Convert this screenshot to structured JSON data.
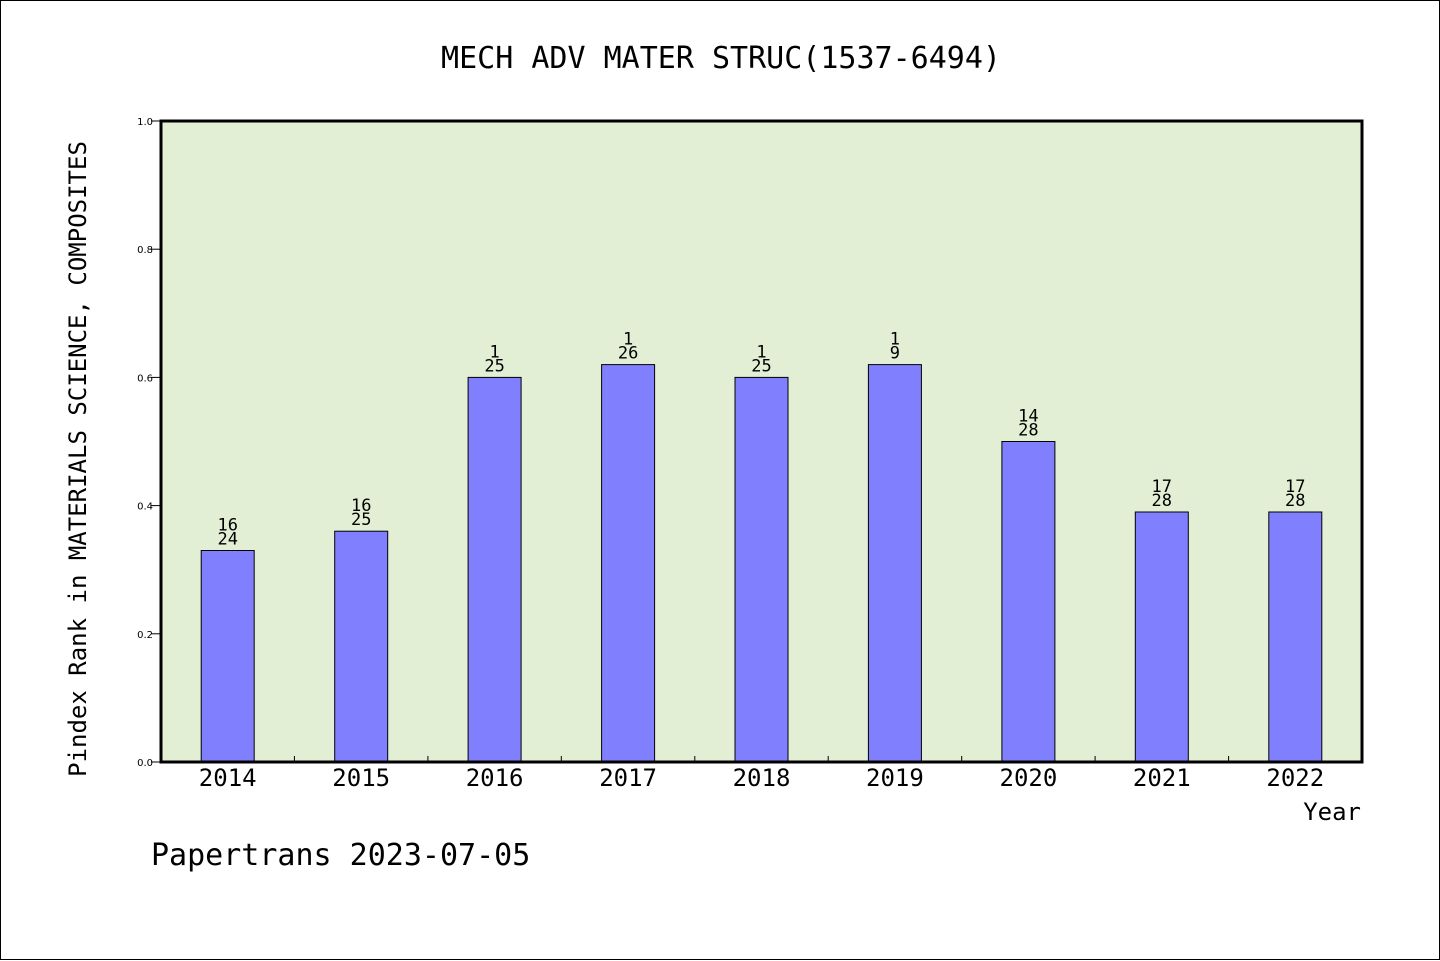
{
  "chart_data": {
    "type": "bar",
    "title": "MECH ADV MATER STRUC(1537-6494)",
    "xlabel": "Year",
    "ylabel": "Pindex Rank in MATERIALS SCIENCE, COMPOSITES",
    "ylim": [
      0,
      1.0
    ],
    "yticks": [
      "0.0",
      "0.2",
      "0.4",
      "0.6",
      "0.8",
      "1.0"
    ],
    "categories": [
      "2014",
      "2015",
      "2016",
      "2017",
      "2018",
      "2019",
      "2020",
      "2021",
      "2022"
    ],
    "values": [
      0.33,
      0.36,
      0.6,
      0.62,
      0.6,
      0.62,
      0.5,
      0.39,
      0.39
    ],
    "labels_top": [
      "16",
      "16",
      "1",
      "1",
      "1",
      "1",
      "14",
      "17",
      "17"
    ],
    "labels_bottom": [
      "24",
      "25",
      "25",
      "26",
      "25",
      "9",
      "28",
      "28",
      "28"
    ],
    "plot_background": "#e2efd5",
    "bar_color": "#8080ff",
    "grid": false
  },
  "footer": "Papertrans 2023-07-05"
}
